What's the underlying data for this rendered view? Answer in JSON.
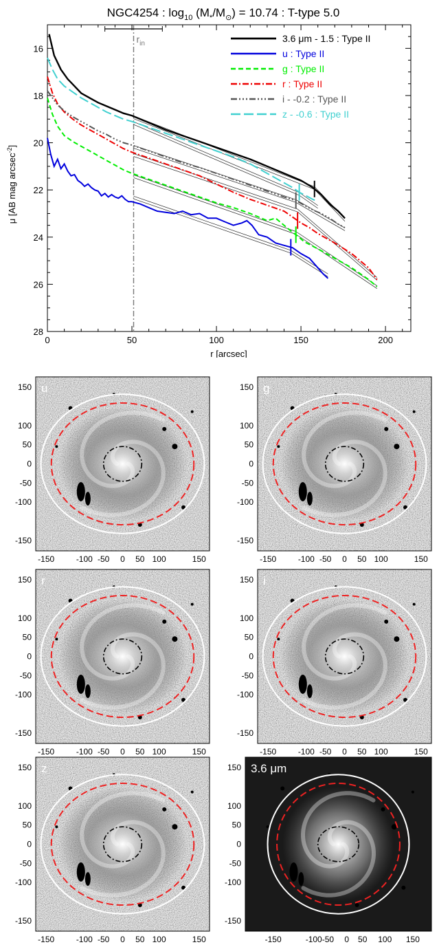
{
  "chart_data": [
    {
      "type": "line",
      "title": "NGC4254 : log",
      "title_sub": "10",
      "title_mid": " (M",
      "title_star": "*",
      "title_mid2": "/M",
      "title_sun": "⊙",
      "title_end": ") = 10.74 : T-type 5.0",
      "xlabel": "r [arcsec]",
      "ylabel_main": "μ [AB mag arcsec",
      "ylabel_sup": "-2",
      "ylabel_end": "]",
      "xlim": [
        0,
        215
      ],
      "ylim": [
        28,
        15
      ],
      "x_ticks": [
        0,
        50,
        100,
        150,
        200
      ],
      "y_ticks": [
        16,
        18,
        20,
        22,
        24,
        26,
        28
      ],
      "r_in_label": "r",
      "r_in_sub": "in",
      "r_in": 51,
      "r_in_range": [
        34,
        68
      ],
      "legend_position": "top-right",
      "series": [
        {
          "name": "3.6 μm - 1.5 : Type II",
          "color": "#000000",
          "dash": "",
          "width": 2.4,
          "x": [
            1,
            4,
            8,
            12,
            16,
            20,
            25,
            30,
            35,
            40,
            45,
            50,
            60,
            70,
            80,
            90,
            100,
            110,
            120,
            130,
            140,
            150,
            157,
            162,
            167,
            172,
            176
          ],
          "y": [
            15.4,
            16.3,
            16.9,
            17.3,
            17.6,
            17.9,
            18.1,
            18.3,
            18.45,
            18.6,
            18.75,
            18.85,
            19.15,
            19.45,
            19.7,
            19.95,
            20.2,
            20.45,
            20.7,
            21.0,
            21.3,
            21.6,
            21.9,
            22.2,
            22.6,
            22.9,
            23.2
          ],
          "break": 158,
          "fit": [
            [
              51,
              18.95,
              158,
              21.95
            ],
            [
              158,
              21.95,
              176,
              23.3
            ]
          ]
        },
        {
          "name": "u : Type II",
          "color": "#0000dd",
          "dash": "",
          "width": 2,
          "x": [
            0,
            2,
            4,
            6,
            8,
            10,
            12,
            14,
            16,
            18,
            20,
            22,
            24,
            26,
            28,
            30,
            32,
            34,
            36,
            38,
            40,
            42,
            44,
            46,
            48,
            50,
            55,
            60,
            65,
            70,
            75,
            80,
            85,
            90,
            95,
            100,
            105,
            110,
            115,
            118,
            121,
            125,
            130,
            135,
            140,
            145,
            150,
            155,
            160,
            163,
            166
          ],
          "y": [
            19.8,
            20.5,
            21.0,
            20.7,
            21.1,
            20.9,
            21.2,
            21.4,
            21.35,
            21.6,
            21.7,
            21.85,
            21.75,
            21.9,
            22.0,
            22.05,
            22.25,
            22.15,
            22.3,
            22.2,
            22.3,
            22.35,
            22.25,
            22.4,
            22.5,
            22.5,
            22.6,
            22.75,
            22.9,
            22.95,
            23.0,
            22.9,
            23.05,
            23.0,
            23.2,
            23.2,
            23.35,
            23.5,
            23.4,
            23.3,
            23.5,
            23.9,
            24.0,
            24.25,
            24.35,
            24.45,
            24.7,
            24.9,
            25.3,
            25.55,
            25.75
          ],
          "break": 144,
          "fit": [
            [
              51,
              22.35,
              144,
              24.65
            ],
            [
              144,
              24.65,
              166,
              25.65
            ]
          ]
        },
        {
          "name": "g : Type II",
          "color": "#00ee00",
          "dash": "7,4",
          "width": 2,
          "x": [
            0,
            3,
            6,
            10,
            15,
            20,
            25,
            30,
            35,
            40,
            45,
            50,
            60,
            70,
            80,
            90,
            100,
            110,
            120,
            130,
            135,
            140,
            145,
            148,
            152,
            160,
            170,
            180,
            190,
            195
          ],
          "y": [
            18.1,
            18.8,
            19.3,
            19.7,
            19.95,
            20.15,
            20.35,
            20.55,
            20.75,
            20.95,
            21.15,
            21.3,
            21.55,
            21.8,
            22.05,
            22.3,
            22.55,
            22.75,
            23.0,
            23.3,
            23.2,
            23.5,
            23.8,
            23.95,
            24.2,
            24.5,
            24.9,
            25.3,
            25.8,
            26.1
          ],
          "break": 147,
          "fit": [
            [
              51,
              21.45,
              147,
              23.85
            ],
            [
              147,
              23.85,
              195,
              26.15
            ]
          ]
        },
        {
          "name": "r : Type II",
          "color": "#ee0000",
          "dash": "9,3,2,3",
          "width": 2,
          "x": [
            0,
            3,
            6,
            10,
            15,
            20,
            25,
            30,
            35,
            40,
            45,
            50,
            60,
            70,
            80,
            90,
            100,
            110,
            120,
            130,
            140,
            145,
            150,
            155,
            160,
            170,
            180,
            190,
            195
          ],
          "y": [
            17.2,
            17.9,
            18.35,
            18.7,
            19.0,
            19.25,
            19.45,
            19.65,
            19.85,
            20.05,
            20.25,
            20.4,
            20.65,
            20.9,
            21.15,
            21.4,
            21.75,
            22.1,
            22.4,
            22.65,
            22.9,
            23.15,
            23.4,
            23.6,
            23.85,
            24.25,
            24.7,
            25.3,
            25.8
          ],
          "break": 148,
          "fit": [
            [
              51,
              20.55,
              148,
              22.9
            ],
            [
              148,
              22.9,
              195,
              25.8
            ]
          ]
        },
        {
          "name": "i - -0.2 : Type II",
          "color": "#555555",
          "dash": "9,3,2,3,2,3,2,3",
          "width": 2,
          "x": [
            0,
            3,
            6,
            10,
            15,
            20,
            25,
            30,
            35,
            40,
            45,
            50,
            60,
            70,
            80,
            90,
            100,
            110,
            120,
            130,
            140,
            147,
            152,
            157,
            162,
            167,
            172,
            176
          ],
          "y": [
            17.8,
            18.1,
            18.4,
            18.65,
            18.9,
            19.1,
            19.3,
            19.5,
            19.65,
            19.85,
            20.0,
            20.1,
            20.35,
            20.6,
            20.85,
            21.05,
            21.3,
            21.55,
            21.8,
            22.05,
            22.3,
            22.45,
            22.65,
            22.85,
            23.0,
            23.2,
            23.45,
            23.6
          ],
          "break": 147,
          "fit": [
            [
              51,
              20.2,
              147,
              22.5
            ],
            [
              147,
              22.5,
              176,
              23.7
            ]
          ]
        },
        {
          "name": "z - -0.6 : Type II",
          "color": "#40d0d0",
          "dash": "14,5",
          "width": 2,
          "x": [
            0,
            3,
            6,
            10,
            15,
            20,
            25,
            30,
            35,
            40,
            45,
            50,
            60,
            70,
            80,
            90,
            100,
            110,
            120,
            130,
            140,
            145,
            149,
            153,
            157,
            160
          ],
          "y": [
            16.4,
            16.9,
            17.3,
            17.6,
            17.85,
            18.1,
            18.3,
            18.5,
            18.7,
            18.85,
            19.0,
            19.1,
            19.35,
            19.6,
            19.85,
            20.1,
            20.35,
            20.6,
            20.9,
            21.3,
            21.7,
            21.9,
            22.1,
            22.25,
            22.4,
            22.5
          ],
          "break": 149,
          "fit": [
            [
              51,
              19.2,
              149,
              22.2
            ],
            [
              149,
              22.2,
              160,
              22.75
            ]
          ]
        }
      ]
    },
    {
      "type": "image-panels",
      "x_ticks": [
        "-150",
        "-100",
        "-50",
        "0",
        "50",
        "100",
        "150"
      ],
      "y_ticks": [
        "150",
        "100",
        "50",
        "0",
        "-50",
        "-100",
        "-150"
      ],
      "x_ticks_36": [
        "-150",
        "-100-50",
        "0",
        "50",
        "100",
        "150"
      ],
      "y_ticks_36": [
        "150",
        "100",
        "50",
        "0",
        "-50",
        "-100",
        "-150"
      ],
      "panels": [
        {
          "band": "u",
          "label": "u"
        },
        {
          "band": "g",
          "label": "g"
        },
        {
          "band": "r",
          "label": "r"
        },
        {
          "band": "i",
          "label": "i"
        },
        {
          "band": "z",
          "label": "z"
        },
        {
          "band": "3.6",
          "label": "3.6 μm"
        }
      ],
      "colors": {
        "outer_ellipse": "#ffffff",
        "break_ellipse": "#ee2222",
        "inner_ellipse": "#000000"
      }
    }
  ]
}
